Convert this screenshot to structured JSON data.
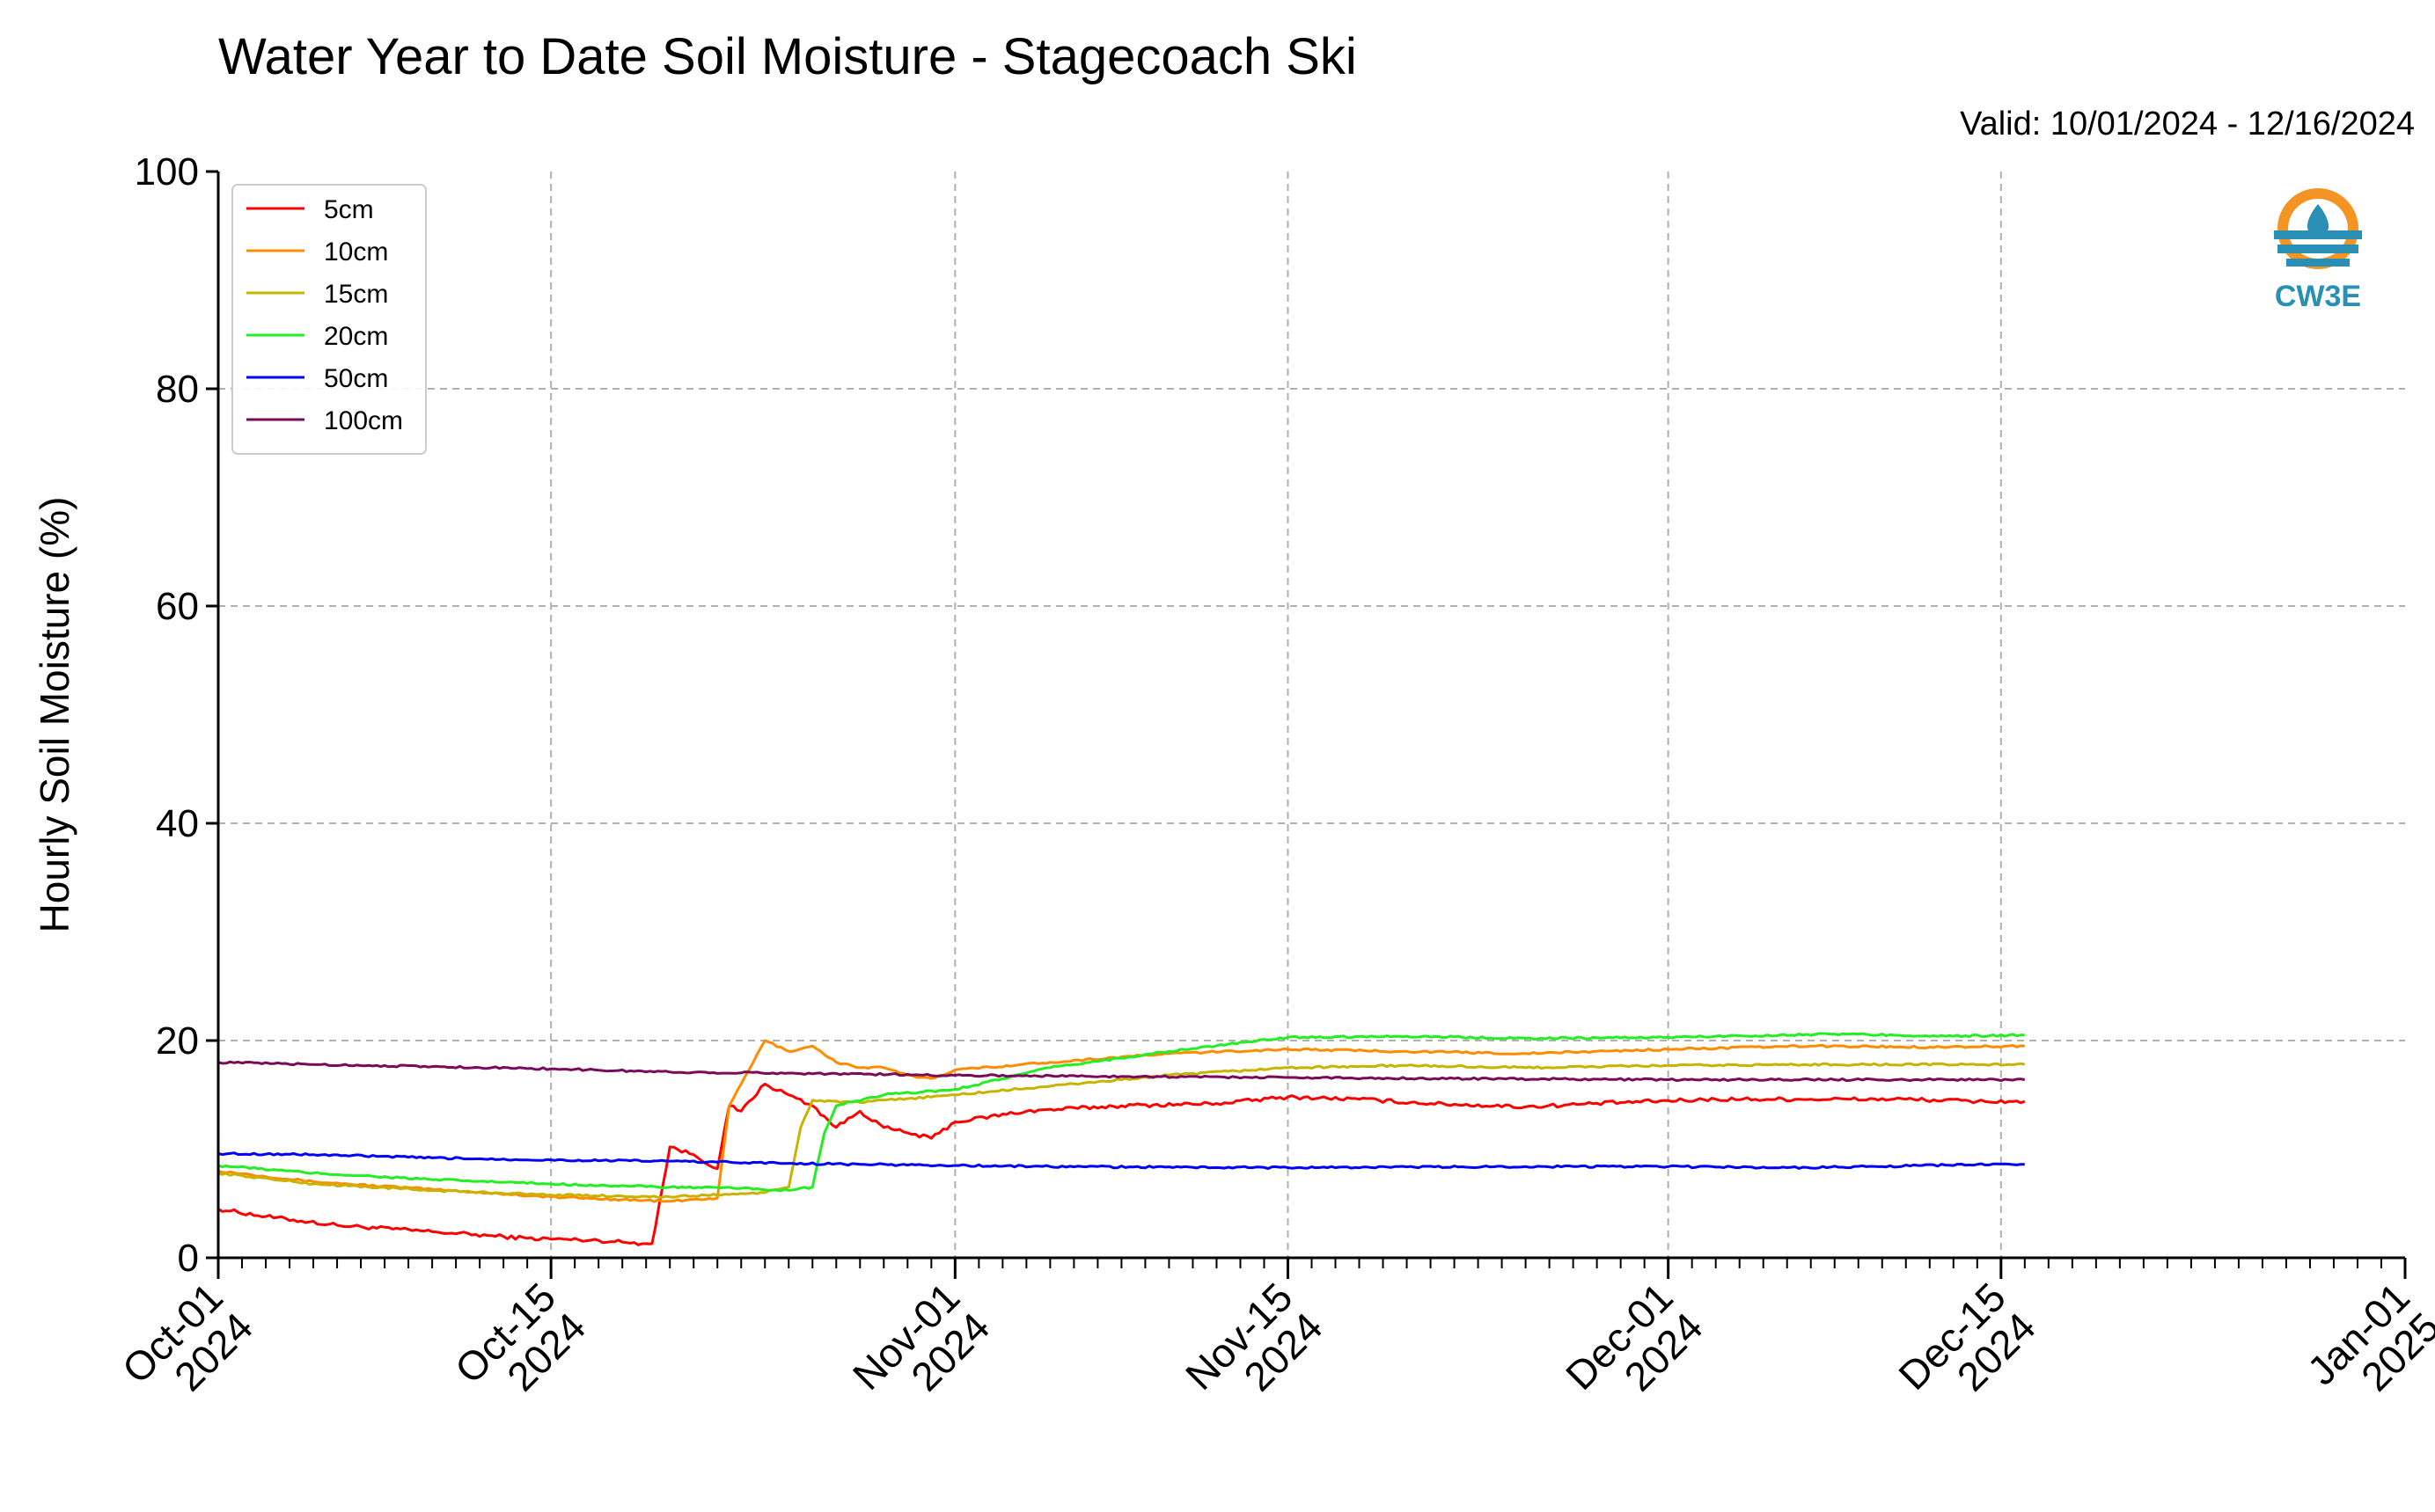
{
  "chart_data": {
    "type": "line",
    "title": "Water Year to Date Soil Moisture - Stagecoach Ski",
    "subtitle": "Valid: 10/01/2024 - 12/16/2024",
    "xlabel": "",
    "ylabel": "Hourly Soil Moisture (%)",
    "xlim": [
      "2024-10-01",
      "2025-01-01"
    ],
    "ylim": [
      0,
      100
    ],
    "y_ticks": [
      0,
      20,
      40,
      60,
      80,
      100
    ],
    "x_ticks": [
      {
        "date": "2024-10-01",
        "line1": "Oct-01",
        "line2": "2024"
      },
      {
        "date": "2024-10-15",
        "line1": "Oct-15",
        "line2": "2024"
      },
      {
        "date": "2024-11-01",
        "line1": "Nov-01",
        "line2": "2024"
      },
      {
        "date": "2024-11-15",
        "line1": "Nov-15",
        "line2": "2024"
      },
      {
        "date": "2024-12-01",
        "line1": "Dec-01",
        "line2": "2024"
      },
      {
        "date": "2024-12-15",
        "line1": "Dec-15",
        "line2": "2024"
      },
      {
        "date": "2025-01-01",
        "line1": "Jan-01",
        "line2": "2025"
      }
    ],
    "grid": true,
    "legend_position": "top-left",
    "logo": {
      "text": "CW3E",
      "color": "#2a8fb5",
      "accent": "#f39423"
    },
    "series": [
      {
        "name": "5cm",
        "color": "#ff0000",
        "x": [
          "2024-10-01",
          "2024-10-03",
          "2024-10-06",
          "2024-10-10",
          "2024-10-14",
          "2024-10-17",
          "2024-10-19",
          "2024-10-19T06",
          "2024-10-20",
          "2024-10-21",
          "2024-10-22",
          "2024-10-22T12",
          "2024-10-23",
          "2024-10-24",
          "2024-10-25",
          "2024-10-26",
          "2024-10-27",
          "2024-10-28",
          "2024-10-29",
          "2024-10-30",
          "2024-10-31",
          "2024-11-01",
          "2024-11-04",
          "2024-11-08",
          "2024-11-12",
          "2024-11-15",
          "2024-11-18",
          "2024-11-21",
          "2024-11-25",
          "2024-11-29",
          "2024-12-03",
          "2024-12-07",
          "2024-12-11",
          "2024-12-14",
          "2024-12-16"
        ],
        "y": [
          4.5,
          3.8,
          3,
          2.4,
          1.8,
          1.6,
          1.3,
          1.3,
          10.2,
          9.5,
          8.2,
          14,
          13.5,
          16,
          15,
          14,
          12,
          13.5,
          12,
          11.5,
          11,
          12.5,
          13.5,
          14,
          14.2,
          14.8,
          14.6,
          14.2,
          13.9,
          14.3,
          14.6,
          14.6,
          14.6,
          14.4,
          14.4
        ]
      },
      {
        "name": "10cm",
        "color": "#ff8c00",
        "x": [
          "2024-10-01",
          "2024-10-05",
          "2024-10-10",
          "2024-10-15",
          "2024-10-20",
          "2024-10-22",
          "2024-10-22T12",
          "2024-10-23",
          "2024-10-24",
          "2024-10-25",
          "2024-10-26",
          "2024-10-27",
          "2024-10-28",
          "2024-10-29",
          "2024-10-30",
          "2024-10-31",
          "2024-11-01",
          "2024-11-05",
          "2024-11-10",
          "2024-11-15",
          "2024-11-20",
          "2024-11-25",
          "2024-12-01",
          "2024-12-07",
          "2024-12-12",
          "2024-12-16"
        ],
        "y": [
          8,
          7,
          6.3,
          5.6,
          5.2,
          5.5,
          14,
          16,
          20,
          19,
          19.5,
          18,
          17.5,
          17.5,
          16.8,
          16.5,
          17.3,
          18,
          18.8,
          19.2,
          19,
          18.8,
          19.2,
          19.5,
          19.4,
          19.5
        ]
      },
      {
        "name": "15cm",
        "color": "#c8b400",
        "x": [
          "2024-10-01",
          "2024-10-05",
          "2024-10-10",
          "2024-10-15",
          "2024-10-20",
          "2024-10-24",
          "2024-10-25",
          "2024-10-25T12",
          "2024-10-26",
          "2024-10-28",
          "2024-11-01",
          "2024-11-05",
          "2024-11-10",
          "2024-11-15",
          "2024-11-20",
          "2024-11-25",
          "2024-12-01",
          "2024-12-08",
          "2024-12-16"
        ],
        "y": [
          7.8,
          6.8,
          6.2,
          5.8,
          5.6,
          6,
          6.5,
          12,
          14.5,
          14.3,
          15,
          15.8,
          16.8,
          17.5,
          17.7,
          17.5,
          17.7,
          17.8,
          17.8
        ]
      },
      {
        "name": "20cm",
        "color": "#22ee22",
        "x": [
          "2024-10-01",
          "2024-10-05",
          "2024-10-10",
          "2024-10-15",
          "2024-10-20",
          "2024-10-23",
          "2024-10-25",
          "2024-10-26",
          "2024-10-26T12",
          "2024-10-27",
          "2024-10-29",
          "2024-11-01",
          "2024-11-05",
          "2024-11-10",
          "2024-11-15",
          "2024-11-20",
          "2024-11-25",
          "2024-12-01",
          "2024-12-08",
          "2024-12-13",
          "2024-12-16"
        ],
        "y": [
          8.5,
          7.8,
          7.2,
          6.8,
          6.5,
          6.4,
          6.2,
          6.5,
          11.5,
          14,
          15,
          15.5,
          17.5,
          19,
          20.3,
          20.4,
          20.2,
          20.3,
          20.6,
          20.4,
          20.5
        ]
      },
      {
        "name": "50cm",
        "color": "#0000ff",
        "x": [
          "2024-10-01",
          "2024-10-05",
          "2024-10-10",
          "2024-10-15",
          "2024-10-20",
          "2024-10-25",
          "2024-10-28",
          "2024-11-01",
          "2024-11-05",
          "2024-11-15",
          "2024-11-25",
          "2024-12-01",
          "2024-12-06",
          "2024-12-10",
          "2024-12-14",
          "2024-12-16"
        ],
        "y": [
          9.6,
          9.5,
          9.2,
          9,
          8.9,
          8.7,
          8.6,
          8.5,
          8.4,
          8.3,
          8.4,
          8.4,
          8.3,
          8.4,
          8.6,
          8.6
        ]
      },
      {
        "name": "100cm",
        "color": "#7a0a5a",
        "x": [
          "2024-10-01",
          "2024-10-05",
          "2024-10-10",
          "2024-10-15",
          "2024-10-20",
          "2024-10-25",
          "2024-11-01",
          "2024-11-08",
          "2024-11-15",
          "2024-11-22",
          "2024-12-01",
          "2024-12-08",
          "2024-12-16"
        ],
        "y": [
          18,
          17.8,
          17.6,
          17.4,
          17.1,
          17,
          16.8,
          16.7,
          16.6,
          16.5,
          16.4,
          16.4,
          16.4
        ]
      }
    ]
  }
}
